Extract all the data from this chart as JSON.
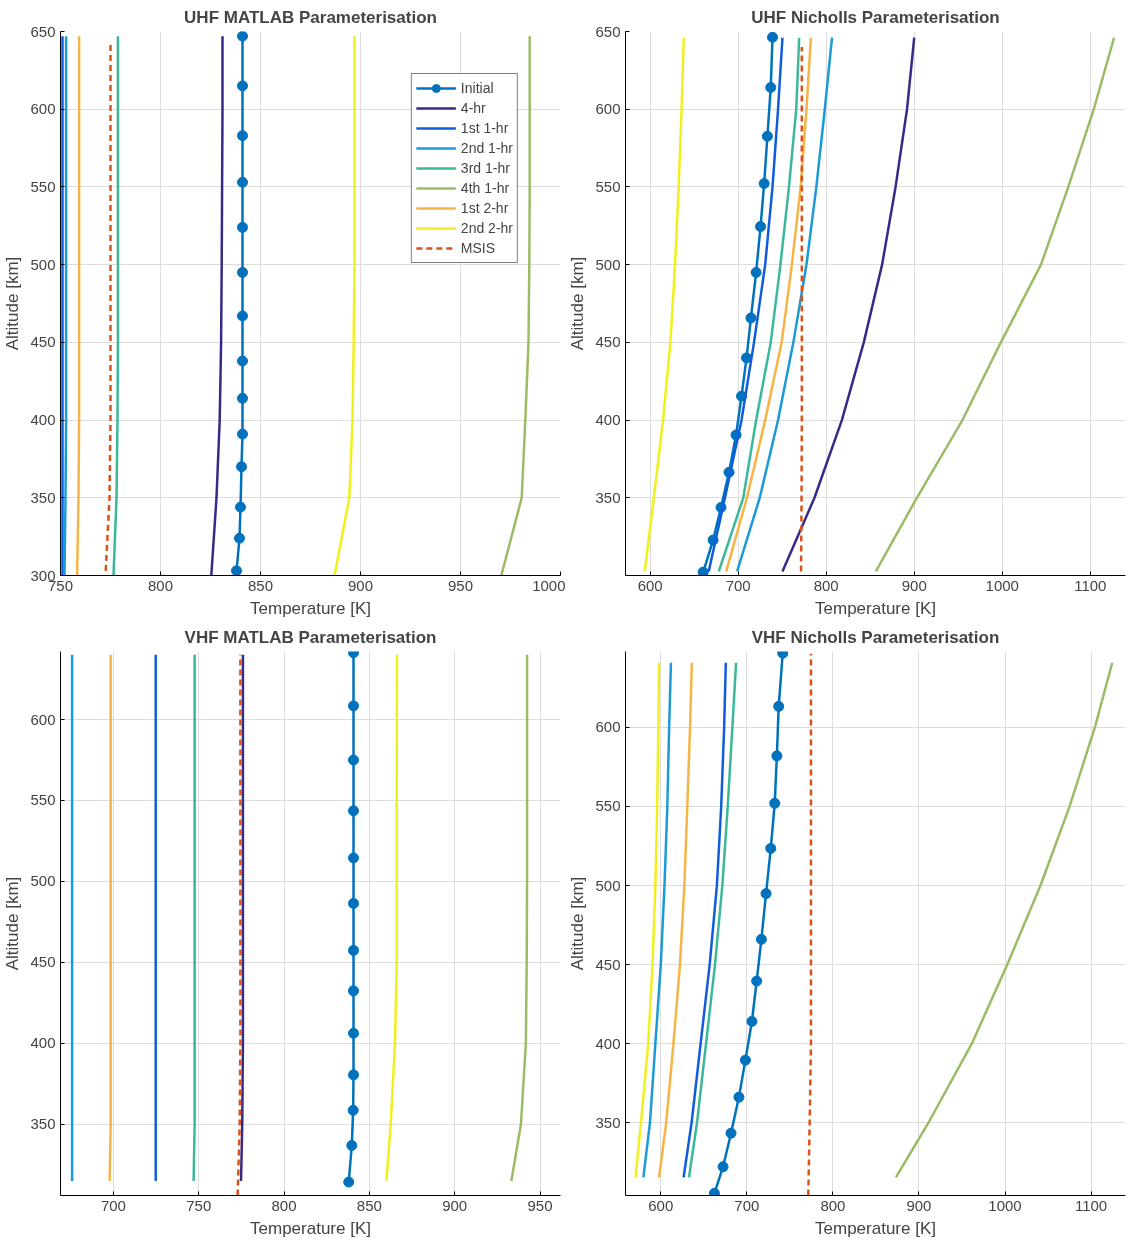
{
  "chart_data": [
    {
      "type": "line",
      "title": "UHF MATLAB Parameterisation",
      "xlabel": "Temperature [K]",
      "ylabel": "Altitude [km]",
      "xlim": [
        750,
        1000
      ],
      "xticks": [
        750,
        800,
        850,
        900,
        950,
        1000
      ],
      "ylim": [
        300,
        650
      ],
      "yticks": [
        300,
        350,
        400,
        450,
        500,
        550,
        600,
        650
      ],
      "grid": true,
      "legend": "top right",
      "marker": "none",
      "line_style": "solid",
      "series": [
        {
          "name": "Initial",
          "color": "#0072bd",
          "marker": "circle",
          "x": [
            838,
            839.5,
            840,
            840.5,
            841,
            841,
            841,
            841,
            841,
            841,
            841,
            841,
            841,
            841
          ],
          "values": [
            303,
            324,
            344,
            370,
            391,
            414,
            438,
            467,
            495,
            524,
            553,
            583,
            615,
            647
          ]
        },
        {
          "name": "4-hr",
          "color": "#352a87",
          "x": [
            825.4,
            828,
            829.6,
            830.3,
            830.6,
            830.8,
            831,
            831
          ],
          "values": [
            300,
            350,
            400,
            450,
            500,
            550,
            600,
            647
          ]
        },
        {
          "name": "1st 1-hr",
          "color": "#0f5cdd",
          "x": [
            751,
            751,
            751,
            751,
            751,
            751,
            751,
            751
          ],
          "values": [
            300,
            350,
            400,
            450,
            500,
            550,
            600,
            647
          ]
        },
        {
          "name": "2nd 1-hr",
          "color": "#1a9ad6",
          "x": [
            752,
            752.5,
            752.8,
            752.8,
            752.8,
            752.8,
            752.8,
            752.8
          ],
          "values": [
            300,
            350,
            400,
            450,
            500,
            550,
            600,
            647
          ]
        },
        {
          "name": "3rd 1-hr",
          "color": "#3bb89a",
          "x": [
            776.5,
            778,
            778.5,
            778.7,
            778.7,
            778.7,
            778.7,
            778.7
          ],
          "values": [
            300,
            350,
            400,
            450,
            500,
            550,
            600,
            647
          ]
        },
        {
          "name": "4th 1-hr",
          "color": "#9bbc67",
          "x": [
            970.4,
            980.6,
            982.4,
            984,
            984.4,
            984.6,
            984.6,
            984.6
          ],
          "values": [
            300,
            350,
            400,
            450,
            500,
            550,
            600,
            647
          ]
        },
        {
          "name": "1st 2-hr",
          "color": "#f6b346",
          "x": [
            758.3,
            759,
            759.3,
            759.3,
            759.3,
            759.3,
            759.3,
            759.3
          ],
          "values": [
            300,
            350,
            400,
            450,
            500,
            550,
            600,
            647
          ]
        },
        {
          "name": "2nd 2-hr",
          "color": "#f2f01c",
          "x": [
            887,
            894.4,
            896,
            896.6,
            897,
            897,
            897,
            897
          ],
          "values": [
            300,
            350,
            400,
            450,
            500,
            550,
            600,
            647
          ]
        },
        {
          "name": "MSIS",
          "color": "#d95319",
          "line_style": "dashed",
          "x": [
            772.6,
            774.5,
            775,
            775,
            775,
            775,
            775,
            775
          ],
          "values": [
            303,
            350,
            400,
            450,
            500,
            550,
            600,
            642
          ]
        }
      ]
    },
    {
      "type": "line",
      "title": "UHF Nicholls Parameterisation",
      "xlabel": "Temperature [K]",
      "ylabel": "Altitude [km]",
      "xlim": [
        572,
        1140
      ],
      "xticks": [
        600,
        700,
        800,
        900,
        1000,
        1100
      ],
      "ylim": [
        300,
        650
      ],
      "yticks": [
        350,
        400,
        450,
        500,
        550,
        600,
        650
      ],
      "grid": true,
      "marker": "none",
      "line_style": "solid",
      "series": [
        {
          "color": "#0072bd",
          "marker": "circle",
          "x": [
            660.3,
            671.5,
            680.5,
            689.6,
            697.6,
            703.8,
            709.5,
            714.5,
            720.4,
            725.4,
            729.5,
            733.2,
            737,
            739
          ],
          "values": [
            302.2,
            322.8,
            343.8,
            366.4,
            390.4,
            415.4,
            440,
            465.7,
            495,
            524.5,
            552.2,
            582.6,
            614,
            646.3
          ]
        },
        {
          "color": "#352a87",
          "x": [
            750.3,
            786.7,
            817.8,
            842.7,
            863.5,
            878.8,
            891.8,
            900
          ],
          "values": [
            302.6,
            350,
            400,
            450,
            500,
            550,
            600,
            646
          ]
        },
        {
          "color": "#0f5cdd",
          "x": [
            666.5,
            685,
            703.8,
            718,
            730.7,
            739,
            745.3,
            750.3
          ],
          "values": [
            302.6,
            350,
            400,
            450,
            500,
            550,
            600,
            646
          ]
        },
        {
          "color": "#1a9ad6",
          "x": [
            698.8,
            724.5,
            745.3,
            762.7,
            777.6,
            788.8,
            798.4,
            806.6
          ],
          "values": [
            302.6,
            350,
            400,
            450,
            500,
            550,
            600,
            646
          ]
        },
        {
          "color": "#3bb89a",
          "x": [
            678,
            705.8,
            720.4,
            737,
            748,
            757.7,
            766,
            769.3
          ],
          "values": [
            302.6,
            350,
            400,
            450,
            500,
            550,
            600,
            646
          ]
        },
        {
          "color": "#9bbc67",
          "x": [
            856.4,
            903,
            954.8,
            998.4,
            1044,
            1075,
            1104,
            1127
          ],
          "values": [
            302.6,
            350,
            400,
            450,
            500,
            550,
            600,
            646
          ]
        },
        {
          "color": "#f6b346",
          "x": [
            686.4,
            710,
            730.7,
            749.4,
            761,
            771,
            777.6,
            782.6
          ],
          "values": [
            302.6,
            350,
            400,
            450,
            500,
            550,
            600,
            646
          ]
        },
        {
          "color": "#f2f01c",
          "x": [
            593.8,
            604.2,
            614.6,
            623,
            628.3,
            632.4,
            635.7,
            638.2
          ],
          "values": [
            302.6,
            350,
            400,
            450,
            500,
            550,
            600,
            646
          ]
        },
        {
          "color": "#d95319",
          "line_style": "dashed",
          "x": [
            771.4,
            772,
            772.3,
            772.3,
            772.3,
            772.3,
            772.3
          ],
          "values": [
            302.6,
            350,
            400,
            450,
            500,
            550,
            640
          ]
        }
      ]
    },
    {
      "type": "line",
      "title": "VHF MATLAB Parameterisation",
      "xlabel": "Temperature [K]",
      "ylabel": "Altitude [km]",
      "xlim": [
        669,
        962
      ],
      "xticks": [
        700,
        750,
        800,
        850,
        900,
        950
      ],
      "ylim": [
        306,
        642
      ],
      "yticks": [
        350,
        400,
        450,
        500,
        550,
        600
      ],
      "grid": true,
      "marker": "none",
      "line_style": "solid",
      "series": [
        {
          "color": "#0072bd",
          "marker": "circle",
          "x": [
            837.9,
            839.7,
            840.5,
            840.7,
            840.7,
            840.7,
            840.7,
            840.7,
            840.7,
            840.7,
            840.7,
            840.7,
            840.7
          ],
          "values": [
            314.3,
            336.9,
            358.6,
            380.5,
            406.2,
            432.4,
            457.4,
            486.4,
            514.5,
            543.6,
            575,
            608.4,
            641.2
          ]
        },
        {
          "color": "#352a87",
          "x": [
            774.8,
            775.5,
            775.9,
            775.9,
            775.9,
            775.9,
            775.9
          ],
          "values": [
            315,
            350,
            400,
            450,
            500,
            550,
            640
          ]
        },
        {
          "color": "#0f5cdd",
          "x": [
            724.8,
            724.8
          ],
          "values": [
            315,
            640
          ]
        },
        {
          "color": "#1a9ad6",
          "x": [
            675.8,
            675.8
          ],
          "values": [
            315,
            640
          ]
        },
        {
          "color": "#3bb89a",
          "x": [
            747,
            747.6,
            747.6,
            747.6
          ],
          "values": [
            315,
            350,
            400,
            640
          ]
        },
        {
          "color": "#9bbc67",
          "x": [
            933.2,
            938.8,
            941.7,
            942.2,
            942.4,
            942.4,
            942.4
          ],
          "values": [
            315,
            350,
            400,
            450,
            500,
            550,
            640
          ]
        },
        {
          "color": "#f6b346",
          "x": [
            697.8,
            698.4,
            698.4
          ],
          "values": [
            315,
            350,
            640
          ]
        },
        {
          "color": "#f2f01c",
          "x": [
            860,
            862.5,
            865,
            866,
            866,
            866,
            866.2
          ],
          "values": [
            315,
            350,
            400,
            450,
            500,
            550,
            640
          ]
        },
        {
          "color": "#d95319",
          "line_style": "dashed",
          "x": [
            772.8,
            774,
            774.4,
            774.4,
            774.4,
            774.4,
            774.4
          ],
          "values": [
            306,
            350,
            400,
            450,
            500,
            550,
            640
          ]
        }
      ]
    },
    {
      "type": "line",
      "title": "VHF Nicholls Parameterisation",
      "xlabel": "Temperature [K]",
      "ylabel": "Altitude [km]",
      "xlim": [
        559,
        1140
      ],
      "xticks": [
        600,
        700,
        800,
        900,
        1000,
        1100
      ],
      "ylim": [
        304,
        648
      ],
      "yticks": [
        350,
        400,
        450,
        500,
        550,
        600
      ],
      "grid": true,
      "marker": "none",
      "line_style": "solid",
      "series": [
        {
          "color": "#0072bd",
          "marker": "circle",
          "x": [
            662.3,
            672.4,
            681.6,
            690.8,
            698.3,
            705.9,
            711.4,
            716.9,
            722.3,
            727.8,
            732.4,
            734.9,
            737,
            741.7
          ],
          "values": [
            305.4,
            322.2,
            343.4,
            366.2,
            389.6,
            414.1,
            439.6,
            466,
            494.9,
            523.5,
            552,
            582,
            613.3,
            646.9
          ]
        },
        {
          "color": "#0f5cdd",
          "x": [
            626.5,
            635.8,
            646.3,
            656.8,
            665.2,
            670.2,
            673.6,
            675.6
          ],
          "values": [
            315.5,
            350,
            400,
            450,
            500,
            550,
            600,
            640.9
          ]
        },
        {
          "color": "#1a9ad6",
          "x": [
            579.8,
            587.4,
            593.7,
            600,
            604.3,
            607.6,
            609.7,
            611.8
          ],
          "values": [
            315.5,
            350,
            400,
            450,
            500,
            550,
            600,
            640.9
          ]
        },
        {
          "color": "#3bb89a",
          "x": [
            632.8,
            642.1,
            652.6,
            663,
            671.5,
            677.8,
            683.2,
            687.5
          ],
          "values": [
            315.5,
            350,
            400,
            450,
            500,
            550,
            600,
            640.9
          ]
        },
        {
          "color": "#9bbc67",
          "x": [
            873.2,
            911,
            961.4,
            1002.6,
            1041.2,
            1075,
            1104.4,
            1124.6
          ],
          "values": [
            315.5,
            350,
            400,
            450,
            500,
            550,
            600,
            640.9
          ]
        },
        {
          "color": "#f6b346",
          "x": [
            598,
            606.3,
            614.7,
            622.3,
            627.4,
            630.8,
            634,
            636.1
          ],
          "values": [
            315.5,
            350,
            400,
            450,
            500,
            550,
            600,
            640.9
          ]
        },
        {
          "color": "#f2f01c",
          "x": [
            570.6,
            577,
            585.4,
            590.4,
            593.7,
            595.8,
            597.1,
            598
          ],
          "values": [
            315.5,
            350,
            400,
            450,
            500,
            550,
            600,
            640.9
          ]
        },
        {
          "color": "#d95319",
          "line_style": "dashed",
          "x": [
            771.4,
            773,
            774.5,
            774.5,
            774.5,
            774.5,
            774.5
          ],
          "values": [
            304,
            350,
            400,
            450,
            500,
            550,
            646.5
          ]
        }
      ]
    }
  ]
}
